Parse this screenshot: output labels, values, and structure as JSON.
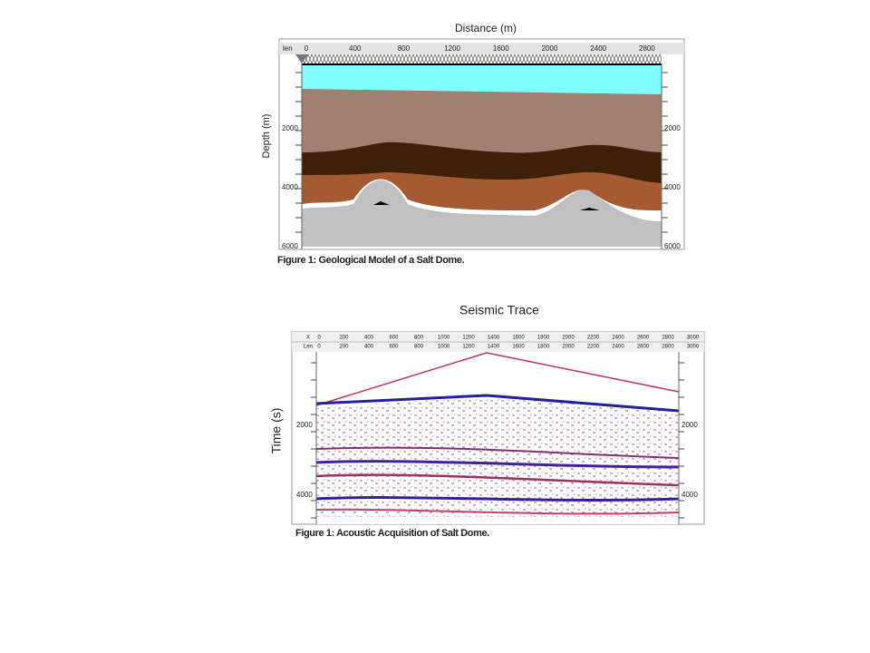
{
  "figures": [
    {
      "title": "Distance (m)",
      "axis_label": "Depth (m)",
      "ruler_label": "len",
      "top_ticks": [
        "0",
        "400",
        "800",
        "1200",
        "1600",
        "2000",
        "2400",
        "2800"
      ],
      "side_ticks": [
        "2000",
        "4000",
        "6000"
      ],
      "caption": "Figure 1: Geological Model of a Salt Dome."
    },
    {
      "title": "Seismic Trace",
      "axis_label": "Time (s)",
      "row_labels": [
        "X",
        "Len"
      ],
      "top_ticks": [
        "0",
        "200",
        "400",
        "600",
        "800",
        "1000",
        "1200",
        "1400",
        "1600",
        "1800",
        "2000",
        "2200",
        "2400",
        "2600",
        "2800",
        "3000"
      ],
      "side_ticks": [
        "2000",
        "4000"
      ],
      "caption": "Figure 1: Acoustic Acquisition of Salt Dome."
    }
  ]
}
